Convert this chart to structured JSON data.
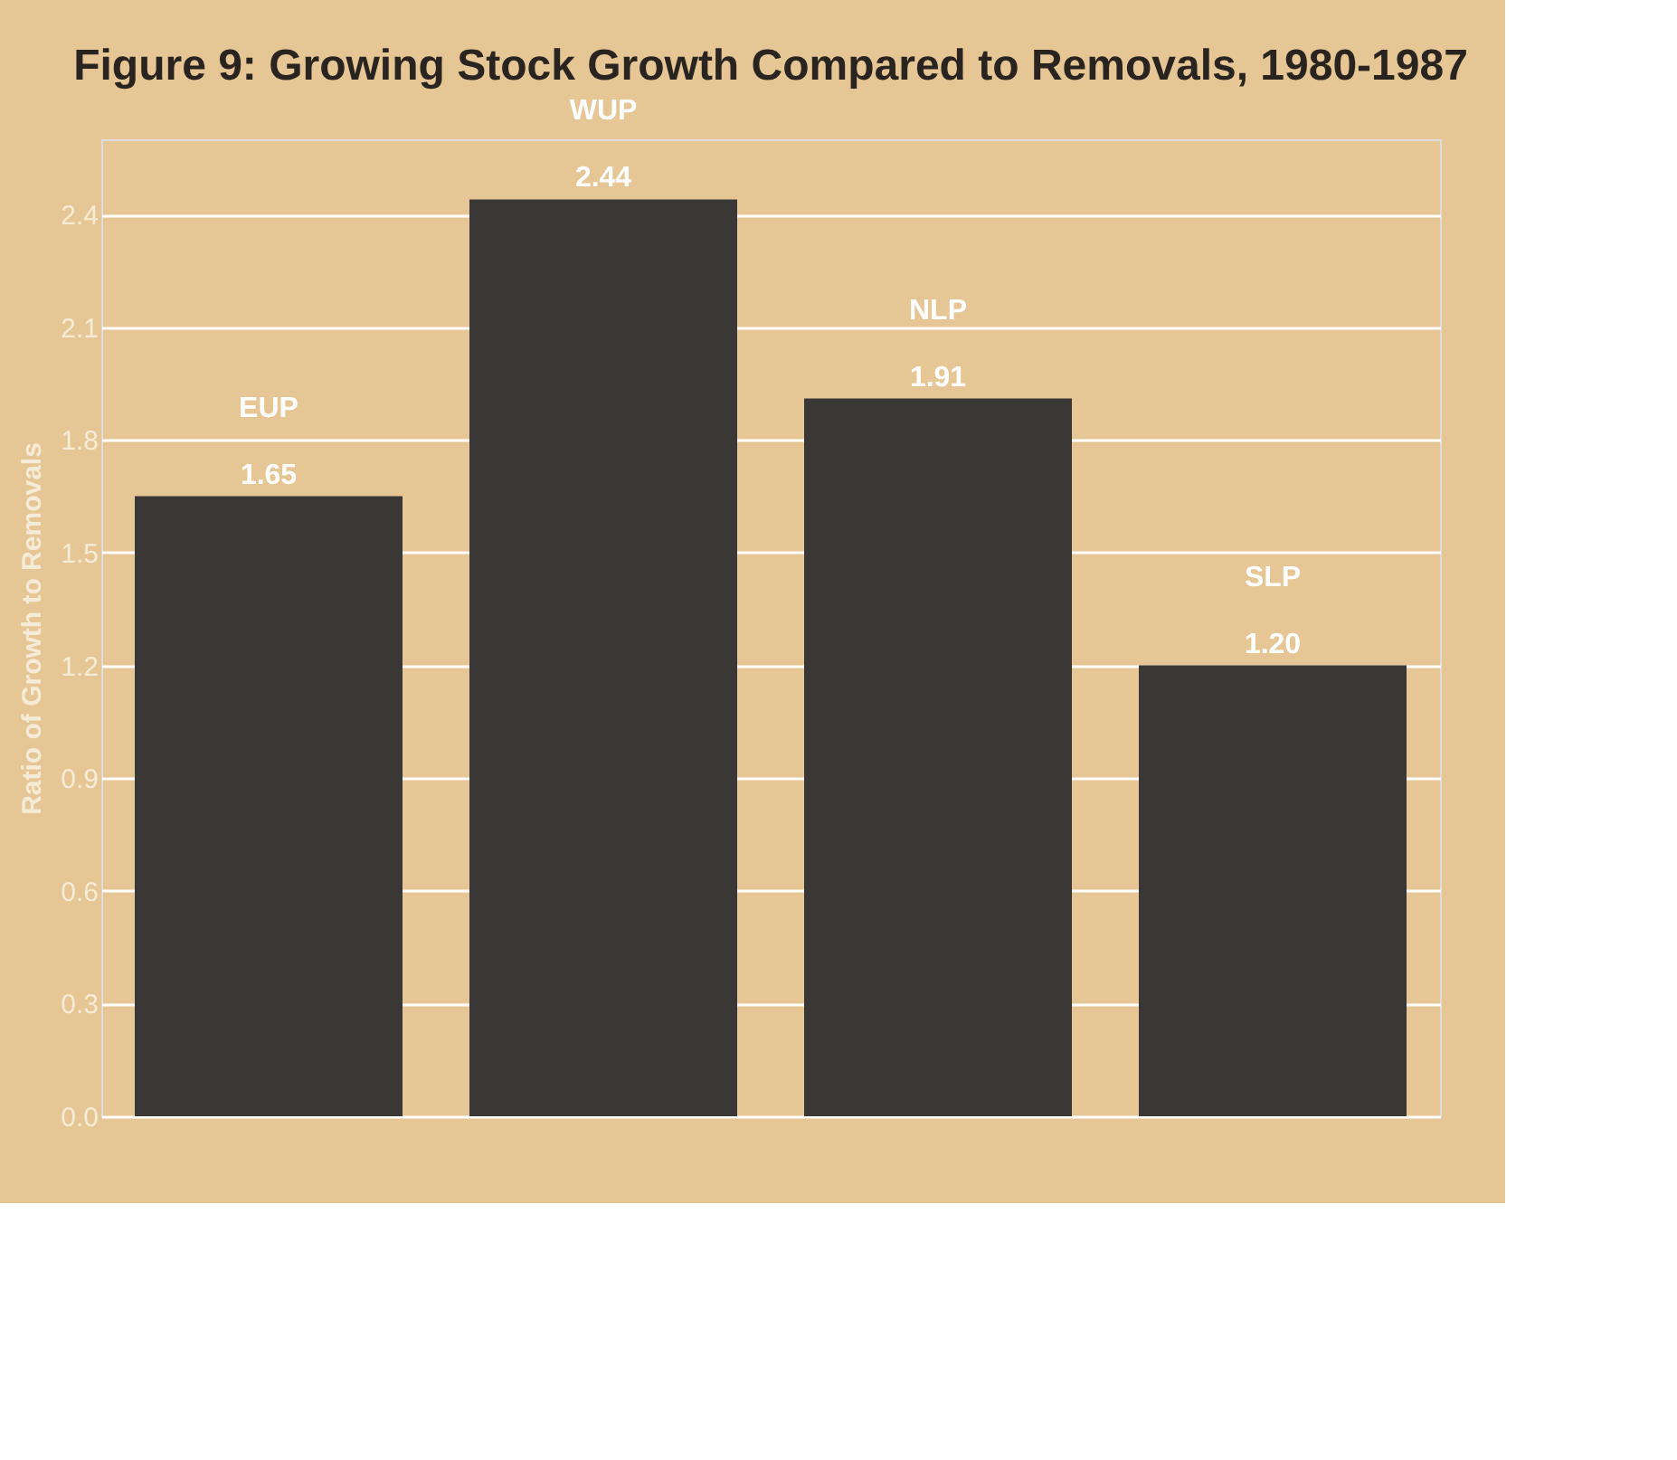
{
  "chart_data": {
    "type": "bar",
    "title": "Figure 9: Growing Stock Growth Compared to Removals, 1980-1987",
    "ylabel": "Ratio of Growth to Removals",
    "categories": [
      "EUP",
      "WUP",
      "NLP",
      "SLP"
    ],
    "values": [
      1.65,
      2.44,
      1.91,
      1.2
    ],
    "color": "#3a3837",
    "ylim": [
      0,
      2.6
    ],
    "yticks": [
      {
        "value": 0,
        "label": "0.0"
      },
      {
        "value": 0.3,
        "label": "0.3"
      },
      {
        "value": 0.6,
        "label": "0.6"
      },
      {
        "value": 0.9,
        "label": "0.9"
      },
      {
        "value": 1.2,
        "label": "1.2"
      },
      {
        "value": 1.5,
        "label": "1.5"
      },
      {
        "value": 1.8,
        "label": "1.8"
      },
      {
        "value": 2.1,
        "label": "2.1"
      },
      {
        "value": 2.4,
        "label": "2.4"
      }
    ],
    "value_labels": [
      "1.65",
      "2.44",
      "1.91",
      "1.20"
    ],
    "grid": "y",
    "tick_labels": "y"
  }
}
